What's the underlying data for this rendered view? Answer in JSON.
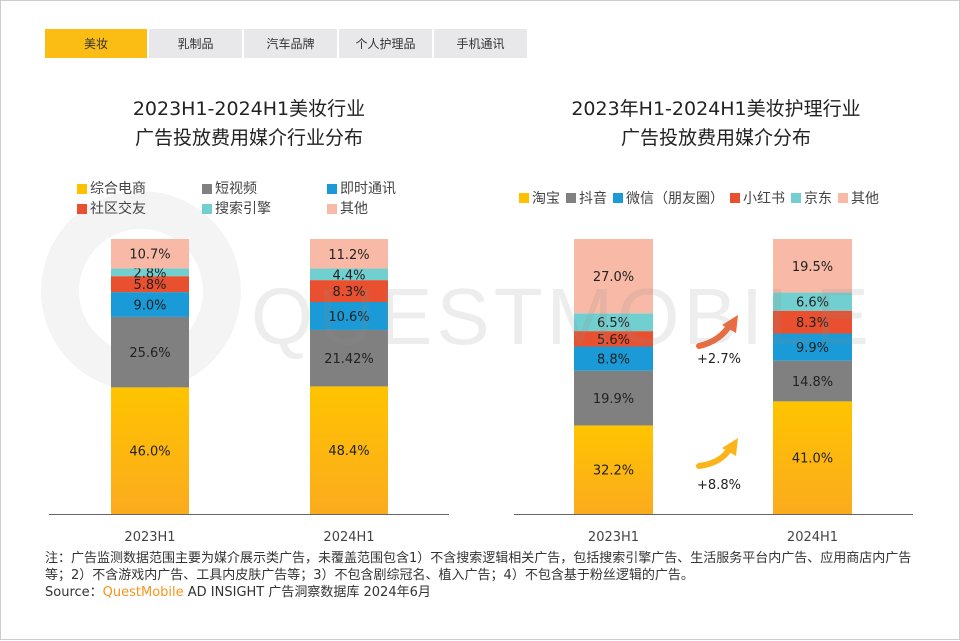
{
  "tabs": [
    "美妆",
    "乳制品",
    "汽车品牌",
    "个人护理品",
    "手机通讯"
  ],
  "watermark": "QUESTMOBILE",
  "colors": [
    "#ffc000",
    "#808080",
    "#1a9ad6",
    "#e8502f",
    "#72cfcf",
    "#f9b9a7"
  ],
  "chart_data": [
    {
      "type": "bar",
      "stacked": true,
      "title": "2023H1-2024H1美妆行业\n广告投放费用媒介行业分布",
      "title_lines": [
        "2023H1-2024H1美妆行业",
        "广告投放费用媒介行业分布"
      ],
      "categories": [
        "2023H1",
        "2024H1"
      ],
      "series": [
        {
          "name": "综合电商",
          "values": [
            46.0,
            48.4
          ],
          "labels": [
            "46.0%",
            "48.4%"
          ]
        },
        {
          "name": "短视频",
          "values": [
            25.6,
            21.42
          ],
          "labels": [
            "25.6%",
            "21.42%"
          ]
        },
        {
          "name": "即时通讯",
          "values": [
            9.0,
            10.6
          ],
          "labels": [
            "9.0%",
            "10.6%"
          ]
        },
        {
          "name": "社区交友",
          "values": [
            5.8,
            8.3
          ],
          "labels": [
            "5.8%",
            "8.3%"
          ]
        },
        {
          "name": "搜索引擎",
          "values": [
            2.8,
            4.4
          ],
          "labels": [
            "2.8%",
            "4.4%"
          ]
        },
        {
          "name": "其他",
          "values": [
            10.7,
            11.2
          ],
          "labels": [
            "10.7%",
            "11.2%"
          ]
        }
      ],
      "legend_placement": "top",
      "grid": false
    },
    {
      "type": "bar",
      "stacked": true,
      "title_lines": [
        "2023年H1-2024H1美妆护理行业",
        "广告投放费用媒介分布"
      ],
      "categories": [
        "2023H1",
        "2024H1"
      ],
      "series": [
        {
          "name": "淘宝",
          "values": [
            32.2,
            41.0
          ],
          "labels": [
            "32.2%",
            "41.0%"
          ]
        },
        {
          "name": "抖音",
          "values": [
            19.9,
            14.8
          ],
          "labels": [
            "19.9%",
            "14.8%"
          ]
        },
        {
          "name": "微信（朋友圈）",
          "values": [
            8.8,
            9.9
          ],
          "labels": [
            "8.8%",
            "9.9%"
          ]
        },
        {
          "name": "小红书",
          "values": [
            5.6,
            8.3
          ],
          "labels": [
            "5.6%",
            "8.3%"
          ]
        },
        {
          "name": "京东",
          "values": [
            6.5,
            6.6
          ],
          "labels": [
            "6.5%",
            "6.6%"
          ]
        },
        {
          "name": "其他",
          "values": [
            27.0,
            19.5
          ],
          "labels": [
            "27.0%",
            "19.5%"
          ]
        }
      ],
      "annotations": [
        {
          "text": "+2.7%",
          "series": "小红书"
        },
        {
          "text": "+8.8%",
          "series": "淘宝"
        }
      ],
      "legend_placement": "top",
      "grid": false
    }
  ],
  "note": "注：广告监测数据范围主要为媒介展示类广告，未覆盖范围包含1）不含搜索逻辑相关广告，包括搜索引擎广告、生活服务平台内广告、应用商店内广告等；2）不含游戏内广告、工具内皮肤广告等；3）不包含剧综冠名、植入广告；4）不包含基于粉丝逻辑的广告。",
  "source_prefix": "Source：",
  "source_brand": "QuestMobile",
  "source_rest": " AD INSIGHT 广告洞察数据库 2024年6月"
}
